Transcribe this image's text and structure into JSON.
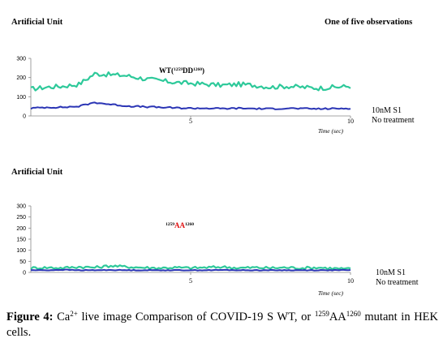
{
  "chart_data": [
    {
      "type": "line",
      "ylabel": "Artificial Unit",
      "header_right": "One of five observations",
      "annotation": {
        "text_prefix": "WT(",
        "sup1": "1259",
        "mid": "DD",
        "sup2": "1260",
        "text_suffix": ")",
        "mid_color": "#000000"
      },
      "xlabel": "Time (sec)",
      "xlim": [
        0,
        10
      ],
      "ylim": [
        0,
        300
      ],
      "yticks": [
        0,
        100,
        200,
        300
      ],
      "xticks": [
        5,
        10
      ],
      "grid": false,
      "legend": [
        "10nM  S1",
        "No treatment"
      ],
      "series": [
        {
          "name": "10nM  S1",
          "color": "#2ec99a",
          "x": [
            0,
            0.5,
            1,
            1.5,
            2,
            2.5,
            3,
            3.5,
            4,
            4.5,
            5,
            5.5,
            6,
            6.5,
            7,
            7.5,
            8,
            8.5,
            9,
            9.5,
            10
          ],
          "y": [
            140,
            150,
            155,
            165,
            220,
            215,
            210,
            195,
            185,
            175,
            170,
            165,
            160,
            165,
            160,
            150,
            155,
            150,
            145,
            150,
            155
          ]
        },
        {
          "name": "No treatment",
          "color": "#2b35b5",
          "x": [
            0,
            0.5,
            1,
            1.5,
            2,
            2.5,
            3,
            3.5,
            4,
            4.5,
            5,
            5.5,
            6,
            6.5,
            7,
            7.5,
            8,
            8.5,
            9,
            9.5,
            10
          ],
          "y": [
            40,
            45,
            45,
            50,
            70,
            60,
            52,
            48,
            45,
            42,
            40,
            40,
            38,
            40,
            38,
            37,
            40,
            38,
            37,
            38,
            40
          ]
        }
      ]
    },
    {
      "type": "line",
      "ylabel": "Artificial Unit",
      "annotation": {
        "text_prefix": "",
        "sup1": "1259",
        "mid": "AA",
        "sup2": "1260",
        "text_suffix": "",
        "mid_color": "#e01010"
      },
      "xlabel": "Time (sec)",
      "xlim": [
        0,
        10
      ],
      "ylim": [
        0,
        300
      ],
      "yticks": [
        0,
        50,
        100,
        150,
        200,
        250,
        300
      ],
      "xticks": [
        5,
        10
      ],
      "grid": false,
      "legend": [
        "10nM  S1",
        "No treatment"
      ],
      "series": [
        {
          "name": "10nM  S1",
          "color": "#2ec99a",
          "x": [
            0,
            0.5,
            1,
            1.5,
            2,
            2.5,
            3,
            3.5,
            4,
            4.5,
            5,
            5.5,
            6,
            6.5,
            7,
            7.5,
            8,
            8.5,
            9,
            9.5,
            10
          ],
          "y": [
            20,
            22,
            20,
            25,
            22,
            30,
            25,
            22,
            20,
            22,
            20,
            22,
            25,
            20,
            22,
            20,
            22,
            20,
            22,
            18,
            15
          ]
        },
        {
          "name": "No treatment",
          "color": "#2b35b5",
          "x": [
            0,
            0.5,
            1,
            1.5,
            2,
            2.5,
            3,
            3.5,
            4,
            4.5,
            5,
            5.5,
            6,
            6.5,
            7,
            7.5,
            8,
            8.5,
            9,
            9.5,
            10
          ],
          "y": [
            10,
            10,
            12,
            10,
            10,
            11,
            10,
            10,
            10,
            10,
            10,
            10,
            11,
            10,
            10,
            10,
            10,
            10,
            10,
            10,
            10
          ]
        }
      ]
    }
  ],
  "caption": {
    "label": "Figure 4:",
    "t1": " Ca",
    "sup1": "2+",
    "t2": " live image Comparison of COVID-19 S WT, or ",
    "sup2": "1259",
    "t3": "AA",
    "sup3": "1260",
    "t4": " mutant in HEK cells."
  }
}
